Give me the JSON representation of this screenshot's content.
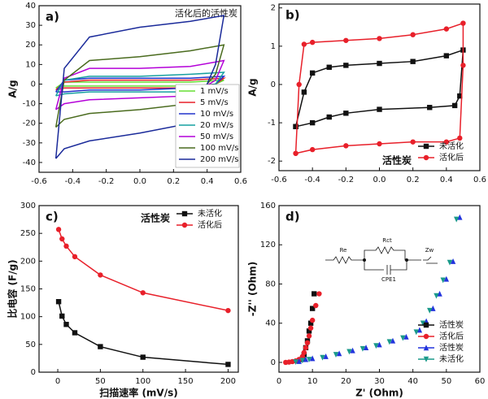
{
  "chart_data": [
    {
      "type": "line",
      "label": "a)",
      "annotation": "活化后的活性炭",
      "ylabel": "A/g",
      "xlim": [
        -0.6,
        0.6
      ],
      "ylim": [
        -45,
        40
      ],
      "xticks": [
        -0.6,
        -0.4,
        -0.2,
        {
          "value": 0,
          "label": "0.0"
        },
        0.2,
        0.4,
        0.6
      ],
      "yticks": [
        -40,
        -30,
        -20,
        -10,
        0,
        10,
        20,
        30,
        40
      ],
      "legend": "lower right",
      "x": [
        -0.5,
        -0.45,
        -0.3,
        0,
        0.3,
        0.5,
        0.45,
        0.3,
        0,
        -0.3,
        -0.45,
        -0.5
      ],
      "series": [
        {
          "name": "1 mV/s",
          "color": "#66dd33",
          "values": [
            -2,
            1,
            1,
            1,
            1,
            2,
            0,
            -1,
            -1,
            -1,
            -1,
            -2
          ]
        },
        {
          "name": "5 mV/s",
          "color": "#e8202a",
          "values": [
            -3,
            1,
            2,
            2,
            2,
            3,
            0,
            -2,
            -2,
            -2,
            -2,
            -3
          ]
        },
        {
          "name": "10 mV/s",
          "color": "#2233cc",
          "values": [
            -4,
            2,
            3,
            3,
            3,
            4,
            0,
            -2,
            -3,
            -3,
            -4,
            -4
          ]
        },
        {
          "name": "20 mV/s",
          "color": "#17a0a0",
          "values": [
            -6,
            2,
            4,
            4,
            5,
            6,
            0,
            -4,
            -4,
            -4,
            -5,
            -6
          ]
        },
        {
          "name": "50 mV/s",
          "color": "#b400d8",
          "values": [
            -13,
            3,
            8,
            8,
            9,
            12,
            2,
            -6,
            -7,
            -8,
            -10,
            -13
          ]
        },
        {
          "name": "100 mV/s",
          "color": "#4a6b1e",
          "values": [
            -22,
            2,
            12,
            14,
            17,
            20,
            5,
            -10,
            -13,
            -15,
            -18,
            -22
          ]
        },
        {
          "name": "200 mV/s",
          "color": "#1a2a9a",
          "values": [
            -38,
            8,
            24,
            29,
            32,
            35,
            10,
            -20,
            -25,
            -29,
            -33,
            -38
          ]
        }
      ]
    },
    {
      "type": "line",
      "label": "b)",
      "ylabel": "A/g",
      "legend_title": "活性炭",
      "xlim": [
        -0.6,
        0.6
      ],
      "ylim": [
        -2.25,
        2.1
      ],
      "xticks": [
        -0.6,
        -0.4,
        -0.2,
        {
          "value": 0,
          "label": "0.0"
        },
        0.2,
        0.4,
        0.6
      ],
      "yticks": [
        -2,
        -1,
        0,
        1,
        2
      ],
      "legend": "lower right",
      "series": [
        {
          "name": "未活化",
          "color": "#111111",
          "marker": "square",
          "x": [
            -0.5,
            -0.45,
            -0.4,
            -0.3,
            -0.2,
            0,
            0.2,
            0.4,
            0.5,
            0.48,
            0.45,
            0.3,
            0,
            -0.2,
            -0.3,
            -0.4,
            -0.5
          ],
          "values": [
            -1.1,
            -0.2,
            0.3,
            0.45,
            0.5,
            0.55,
            0.6,
            0.75,
            0.9,
            -0.3,
            -0.55,
            -0.6,
            -0.65,
            -0.75,
            -0.85,
            -1.0,
            -1.1
          ]
        },
        {
          "name": "活化后",
          "color": "#e8202a",
          "marker": "circle",
          "x": [
            -0.5,
            -0.48,
            -0.45,
            -0.4,
            -0.2,
            0,
            0.2,
            0.4,
            0.5,
            0.5,
            0.48,
            0.4,
            0.2,
            0,
            -0.2,
            -0.4,
            -0.5
          ],
          "values": [
            -1.8,
            0,
            1.05,
            1.1,
            1.15,
            1.2,
            1.3,
            1.45,
            1.6,
            0.5,
            -1.4,
            -1.5,
            -1.5,
            -1.55,
            -1.6,
            -1.7,
            -1.8
          ]
        }
      ]
    },
    {
      "type": "line",
      "label": "c)",
      "xlabel": "扫描速率 (mV/s)",
      "ylabel": "比电容 (F/g)",
      "legend_title": "活性炭",
      "xlim": [
        -22,
        212
      ],
      "ylim": [
        0,
        300
      ],
      "xticks": [
        0,
        50,
        100,
        150,
        200
      ],
      "yticks": [
        0,
        50,
        100,
        150,
        200,
        250,
        300
      ],
      "legend": "upper right",
      "x": [
        1,
        5,
        10,
        20,
        50,
        100,
        200
      ],
      "series": [
        {
          "name": "未活化",
          "color": "#111111",
          "marker": "square",
          "values": [
            127,
            101,
            86,
            71,
            46,
            27,
            14
          ]
        },
        {
          "name": "活化后",
          "color": "#e8202a",
          "marker": "circle",
          "values": [
            257,
            240,
            227,
            208,
            175,
            143,
            111
          ]
        }
      ]
    },
    {
      "type": "scatter",
      "label": "d)",
      "xlabel": "Z' (Ohm)",
      "ylabel": "-Z'' (Ohm)",
      "inset_labels": [
        "Re",
        "Rct",
        "CPE1",
        "Zw"
      ],
      "xlim": [
        0,
        60
      ],
      "ylim": [
        -10,
        160
      ],
      "xticks": [
        0,
        10,
        20,
        30,
        40,
        50,
        60
      ],
      "yticks": [
        0,
        40,
        80,
        120,
        160
      ],
      "legend": "lower right",
      "series": [
        {
          "name": "活性炭",
          "color": "#111111",
          "marker": "square",
          "x": [
            7,
            7.5,
            8,
            8.5,
            9,
            9.5,
            10,
            10.5
          ],
          "values": [
            3,
            8,
            15,
            22,
            32,
            40,
            55,
            70
          ]
        },
        {
          "name": "活化后",
          "color": "#e8202a",
          "marker": "circle",
          "x": [
            2,
            3,
            4,
            5,
            6,
            7,
            7.5,
            8,
            8.5,
            9,
            9.5,
            10,
            11,
            12
          ],
          "values": [
            0,
            0.3,
            0.8,
            1.5,
            3,
            6,
            10,
            15,
            20,
            27,
            35,
            43,
            58,
            70
          ]
        },
        {
          "name": "活性炭",
          "color": "#2233dd",
          "marker": "triangle",
          "x": [
            6,
            8,
            10,
            14,
            18,
            22,
            26,
            30,
            34,
            38,
            42,
            44,
            46,
            48,
            50,
            52,
            54
          ],
          "values": [
            1,
            3,
            4,
            6,
            9,
            12,
            15,
            18,
            22,
            26,
            33,
            42,
            55,
            70,
            85,
            103,
            148
          ]
        },
        {
          "name": "未活化",
          "color": "#1a9a8a",
          "marker": "triangle-down",
          "x": [
            5,
            7,
            9,
            13,
            17,
            21,
            25,
            29,
            33,
            37,
            41,
            43,
            45,
            47,
            49,
            51,
            53
          ],
          "values": [
            0.5,
            2,
            3,
            5,
            8,
            11,
            14,
            17,
            21,
            25,
            31,
            40,
            53,
            68,
            84,
            102,
            146
          ]
        }
      ]
    }
  ]
}
